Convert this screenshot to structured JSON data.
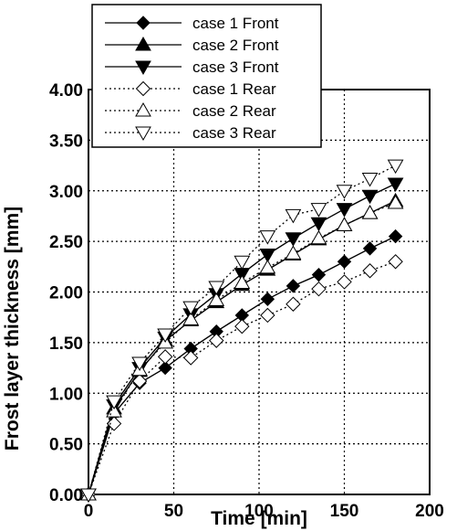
{
  "chart_data": {
    "type": "line",
    "xlabel": "Time [min]",
    "ylabel": "Frost layer thickness [mm]",
    "xlim": [
      0,
      200
    ],
    "ylim": [
      0,
      4
    ],
    "x_ticks": [
      "0",
      "50",
      "100",
      "150",
      "200"
    ],
    "y_ticks": [
      "0.00",
      "0.50",
      "1.00",
      "1.50",
      "2.00",
      "2.50",
      "3.00",
      "3.50",
      "4.00"
    ],
    "grid": true,
    "legend_position": "top-left",
    "x": [
      0,
      15,
      30,
      45,
      60,
      75,
      90,
      105,
      120,
      135,
      150,
      165,
      180
    ],
    "series": [
      {
        "name": "case 1 Front",
        "marker": "filled-diamond",
        "line": "solid",
        "values": [
          0.0,
          0.8,
          1.1,
          1.25,
          1.44,
          1.61,
          1.77,
          1.93,
          2.06,
          2.17,
          2.3,
          2.43,
          2.55
        ]
      },
      {
        "name": "case 2 Front",
        "marker": "filled-triangle-up",
        "line": "solid",
        "values": [
          0.0,
          0.85,
          1.22,
          1.52,
          1.72,
          1.9,
          2.07,
          2.22,
          2.37,
          2.52,
          2.66,
          2.78,
          2.9
        ]
      },
      {
        "name": "case 3 Front",
        "marker": "filled-triangle-down",
        "line": "solid",
        "values": [
          0.0,
          0.88,
          1.25,
          1.55,
          1.78,
          1.98,
          2.18,
          2.37,
          2.53,
          2.68,
          2.82,
          2.95,
          3.07
        ]
      },
      {
        "name": "case 1 Rear",
        "marker": "open-diamond",
        "line": "dotted",
        "values": [
          0.0,
          0.7,
          1.12,
          1.36,
          1.35,
          1.52,
          1.66,
          1.77,
          1.88,
          2.03,
          2.1,
          2.21,
          2.3
        ]
      },
      {
        "name": "case 2 Rear",
        "marker": "open-triangle-up",
        "line": "dotted",
        "values": [
          0.0,
          0.82,
          1.23,
          1.5,
          1.73,
          1.92,
          2.09,
          2.24,
          2.38,
          2.53,
          2.66,
          2.78,
          2.88
        ]
      },
      {
        "name": "case 3 Rear",
        "marker": "open-triangle-down",
        "line": "dotted",
        "values": [
          0.0,
          0.92,
          1.3,
          1.58,
          1.85,
          2.05,
          2.3,
          2.55,
          2.76,
          2.82,
          3.0,
          3.12,
          3.25
        ]
      }
    ]
  }
}
